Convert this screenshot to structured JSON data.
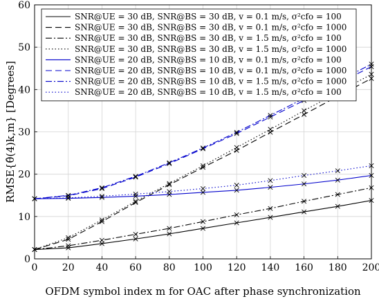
{
  "chart_data": {
    "type": "line",
    "xlabel": "OFDM symbol index m for OAC after phase synchronization",
    "ylabel": "RMSE{θ̂(4)k,m} [Degrees]",
    "xlim": [
      0,
      200
    ],
    "ylim": [
      0,
      60
    ],
    "xticks": [
      "0",
      "20",
      "40",
      "60",
      "80",
      "100",
      "120",
      "140",
      "160",
      "180",
      "200"
    ],
    "yticks": [
      "0",
      "10",
      "20",
      "30",
      "40",
      "50",
      "60"
    ],
    "grid": true,
    "legend_position": "top-left",
    "marker": "x",
    "x": [
      0,
      20,
      40,
      60,
      80,
      100,
      120,
      140,
      160,
      180,
      200
    ],
    "series": [
      {
        "name": "SNR@UE = 30 dB, SNR@BS = 30 dB, v = 0.1 m/s, σ²cfo = 100",
        "color": "#000000",
        "dash": "solid",
        "values": [
          2.2,
          2.6,
          3.6,
          4.7,
          5.9,
          7.2,
          8.5,
          9.8,
          11.1,
          12.4,
          13.8
        ]
      },
      {
        "name": "SNR@UE = 30 dB, SNR@BS = 30 dB, v = 0.1 m/s, σ²cfo = 1000",
        "color": "#000000",
        "dash": "dashed",
        "values": [
          2.2,
          4.6,
          8.8,
          13.3,
          17.5,
          21.6,
          25.6,
          29.9,
          34.1,
          38.4,
          42.6
        ]
      },
      {
        "name": "SNR@UE = 30 dB, SNR@BS = 30 dB, v = 1.5 m/s, σ²cfo = 100",
        "color": "#000000",
        "dash": "dashdot",
        "values": [
          2.2,
          3.1,
          4.4,
          5.8,
          7.2,
          8.8,
          10.4,
          11.9,
          13.6,
          15.2,
          16.8
        ]
      },
      {
        "name": "SNR@UE = 30 dB, SNR@BS = 30 dB, v = 1.5 m/s, σ²cfo = 1000",
        "color": "#000000",
        "dash": "dotted",
        "values": [
          2.2,
          5.0,
          9.2,
          13.6,
          17.8,
          22.0,
          26.3,
          30.6,
          35.0,
          39.3,
          43.6
        ]
      },
      {
        "name": "SNR@UE = 20 dB, SNR@BS = 10 dB, v = 0.1 m/s, σ²cfo = 100",
        "color": "#0000cc",
        "dash": "solid",
        "values": [
          14.2,
          14.3,
          14.5,
          14.8,
          15.2,
          15.7,
          16.2,
          16.9,
          17.7,
          18.6,
          19.7
        ]
      },
      {
        "name": "SNR@UE = 20 dB, SNR@BS = 10 dB, v = 0.1 m/s, σ²cfo = 1000",
        "color": "#0000cc",
        "dash": "dashed",
        "values": [
          14.2,
          14.9,
          16.6,
          19.3,
          22.5,
          26.0,
          29.6,
          33.5,
          37.4,
          41.4,
          45.4
        ]
      },
      {
        "name": "SNR@UE = 20 dB, SNR@BS = 10 dB, v = 1.5 m/s, σ²cfo = 1000",
        "color": "#0000cc",
        "dash": "dashdot",
        "values": [
          14.2,
          15.0,
          16.8,
          19.5,
          22.7,
          26.2,
          29.9,
          33.9,
          37.9,
          41.9,
          46.0
        ]
      },
      {
        "name": "SNR@UE = 20 dB, SNR@BS = 10 dB, v = 1.5 m/s, σ²cfo = 100",
        "color": "#0000cc",
        "dash": "dotted",
        "values": [
          14.2,
          14.4,
          14.8,
          15.3,
          15.9,
          16.6,
          17.4,
          18.5,
          19.7,
          20.8,
          22.0
        ]
      }
    ]
  }
}
